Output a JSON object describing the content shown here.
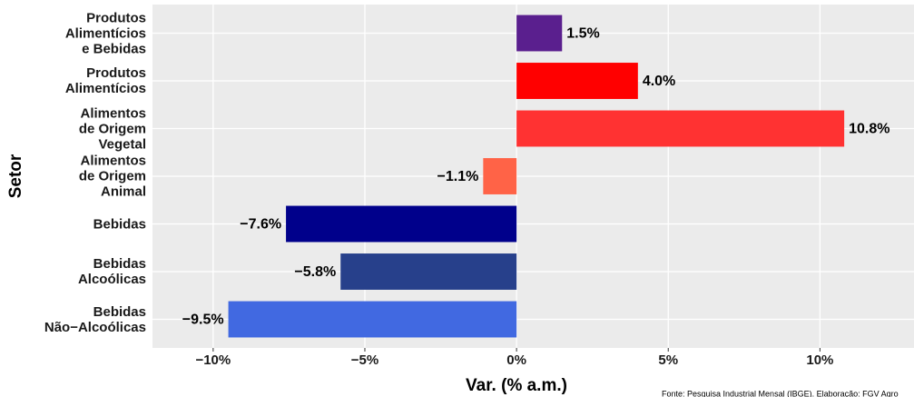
{
  "chart_data": {
    "type": "barh",
    "categories": [
      "Produtos\nAlimentícios\ne Bebidas",
      "Produtos\nAlimentícios",
      "Alimentos\nde Origem\nVegetal",
      "Alimentos\nde Origem\nAnimal",
      "Bebidas",
      "Bebidas\nAlcoólicas",
      "Bebidas\nNão−Alcoólicas"
    ],
    "values": [
      1.5,
      4.0,
      10.8,
      -1.1,
      -7.6,
      -5.8,
      -9.5
    ],
    "value_labels": [
      "1.5%",
      "4.0%",
      "10.8%",
      "−1.1%",
      "−7.6%",
      "−5.8%",
      "−9.5%"
    ],
    "colors": [
      "#5a1f8e",
      "#ff0000",
      "#ff3232",
      "#ff6347",
      "#00008b",
      "#27408b",
      "#4169e1"
    ],
    "xlim": [
      -12,
      13.1
    ],
    "xticks": [
      {
        "value": -10,
        "label": "−10%"
      },
      {
        "value": -5,
        "label": "−5%"
      },
      {
        "value": 0,
        "label": "0%"
      },
      {
        "value": 5,
        "label": "5%"
      },
      {
        "value": 10,
        "label": "10%"
      }
    ],
    "xlabel": "Var. (% a.m.)",
    "ylabel": "Setor",
    "caption": "Fonte: Pesquisa Industrial Mensal (IBGE). Elaboração: FGV Agro",
    "grid": true
  }
}
